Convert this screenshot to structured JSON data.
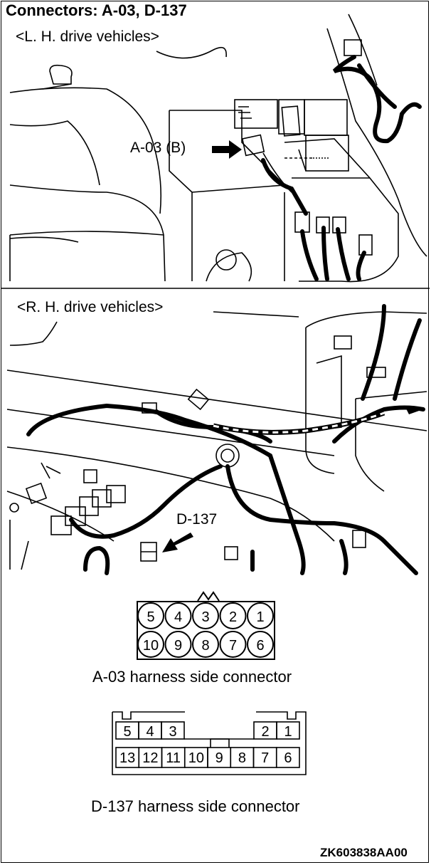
{
  "header": {
    "title": "Connectors: A-03, D-137"
  },
  "views": {
    "lh": {
      "label": "<L. H. drive vehicles>",
      "callout": "A-03 (B)"
    },
    "rh": {
      "label": "<R. H. drive vehicles>",
      "callout": "D-137"
    }
  },
  "connectors": {
    "a03": {
      "caption": "A-03 harness side connector",
      "pins_top": [
        "5",
        "4",
        "3",
        "2",
        "1"
      ],
      "pins_bottom": [
        "10",
        "9",
        "8",
        "7",
        "6"
      ]
    },
    "d137": {
      "caption": "D-137 harness side connector",
      "pins_top_left": [
        "5",
        "4",
        "3"
      ],
      "pins_top_right": [
        "2",
        "1"
      ],
      "pins_bottom": [
        "13",
        "12",
        "11",
        "10",
        "9",
        "8",
        "7",
        "6"
      ]
    }
  },
  "footer": {
    "drawing_id": "ZK603838AA00"
  }
}
